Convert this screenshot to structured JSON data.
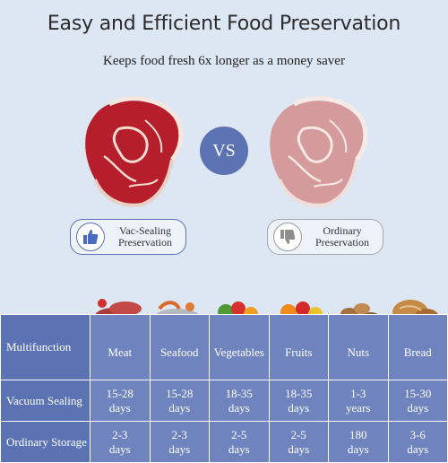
{
  "header": {
    "title": "Easy and Efficient Food Preservation",
    "subtitle": "Keeps food fresh 6x longer as a money saver"
  },
  "comparison": {
    "vs_label": "VS",
    "good": {
      "line1": "Vac-Sealing",
      "line2": "Preservation",
      "icon": "thumbs-up-icon",
      "color": "#5b73b3"
    },
    "bad": {
      "line1": "Ordinary",
      "line2": "Preservation",
      "icon": "thumbs-down-icon",
      "color": "#9a9a9a"
    }
  },
  "table": {
    "row_labels": [
      "Multifunction",
      "Vacuum Sealing",
      "Ordinary Storage"
    ],
    "columns": [
      "Meat",
      "Seafood",
      "Vegetables",
      "Fruits",
      "Nuts",
      "Bread"
    ],
    "vacuum": [
      [
        "15-28",
        "days"
      ],
      [
        "15-28",
        "days"
      ],
      [
        "18-35",
        "days"
      ],
      [
        "18-35",
        "days"
      ],
      [
        "1-3",
        "years"
      ],
      [
        "15-30",
        "days"
      ]
    ],
    "ordinary": [
      [
        "2-3",
        "days"
      ],
      [
        "2-3",
        "days"
      ],
      [
        "2-5",
        "days"
      ],
      [
        "2-5",
        "days"
      ],
      [
        "180",
        "days"
      ],
      [
        "3-6",
        "days"
      ]
    ]
  }
}
